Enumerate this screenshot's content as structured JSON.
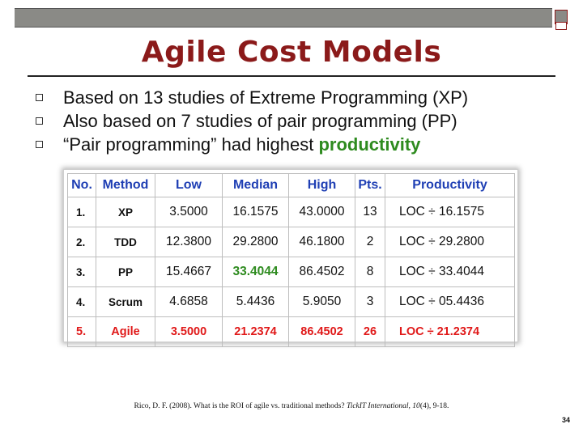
{
  "slide": {
    "title": "Agile Cost Models",
    "bullets": [
      {
        "text": "Based on 13 studies of Extreme Programming (XP)"
      },
      {
        "text": "Also based on 7 studies of pair programming (PP)"
      },
      {
        "text": "“Pair programming” had highest ",
        "highlight": "productivity"
      }
    ],
    "table": {
      "headers": [
        "No.",
        "Method",
        "Low",
        "Median",
        "High",
        "Pts.",
        "Productivity"
      ],
      "rows": [
        [
          "1.",
          "XP",
          "3.5000",
          "16.1575",
          "43.0000",
          "13",
          "LOC ÷ 16.1575"
        ],
        [
          "2.",
          "TDD",
          "12.3800",
          "29.2800",
          "46.1800",
          "2",
          "LOC ÷ 29.2800"
        ],
        [
          "3.",
          "PP",
          "15.4667",
          "33.4044",
          "86.4502",
          "8",
          "LOC ÷ 33.4044"
        ],
        [
          "4.",
          "Scrum",
          "4.6858",
          "5.4436",
          "5.9050",
          "3",
          "LOC ÷ 05.4436"
        ],
        [
          "5.",
          "Agile",
          "3.5000",
          "21.2374",
          "86.4502",
          "26",
          "LOC ÷ 21.2374"
        ]
      ]
    },
    "citation": {
      "before": "Rico, D. F. (2008). What is the ROI of agile vs. traditional methods? ",
      "journal": "TickIT International, 10",
      "after": "(4), 9-18."
    },
    "page_number": "34"
  },
  "colors": {
    "title": "#8b1a1a",
    "header_text": "#1f3fb4",
    "highlight_green": "#2e8b1f",
    "agile_red": "#e01818"
  }
}
